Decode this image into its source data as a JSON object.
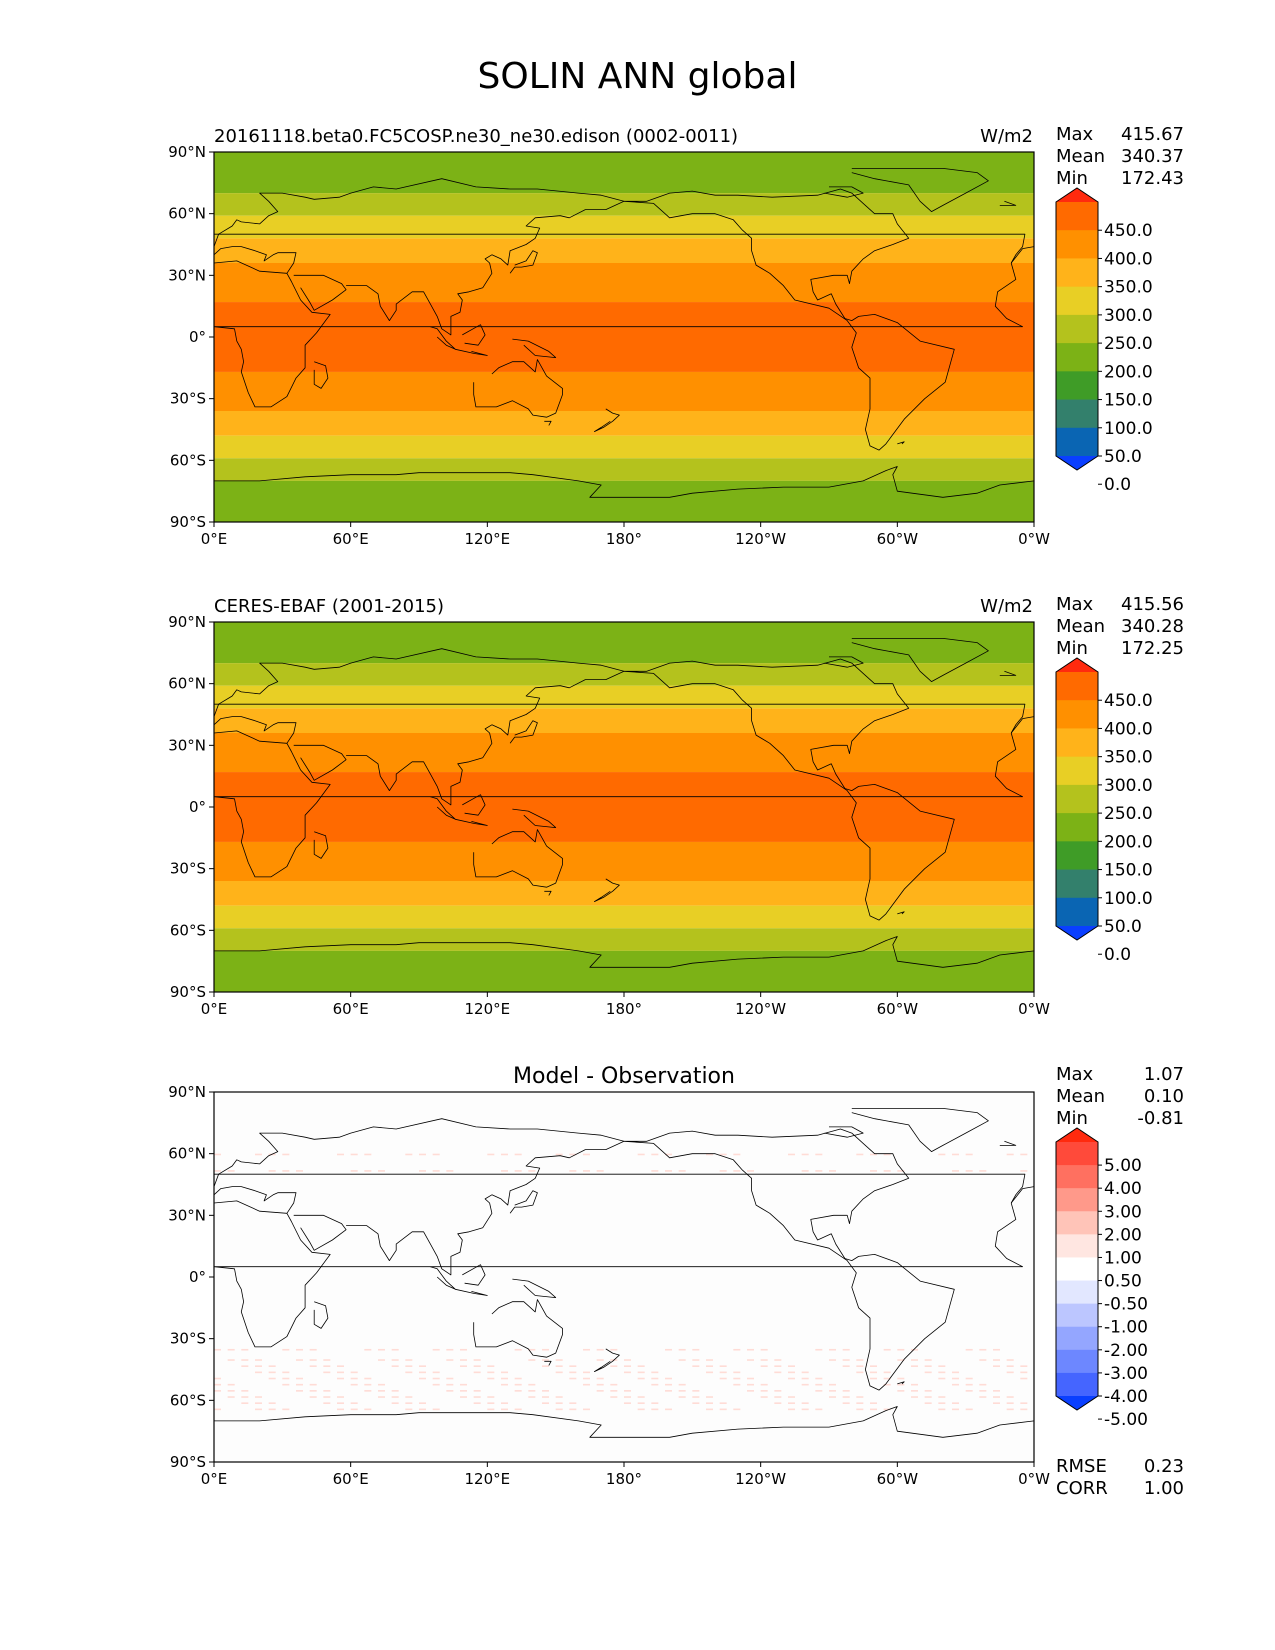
{
  "page": {
    "title": "SOLIN ANN global"
  },
  "axes": {
    "lat_ticks": [
      "90°N",
      "60°N",
      "30°N",
      "0°",
      "30°S",
      "60°S",
      "90°S"
    ],
    "lon_ticks": [
      "0°E",
      "60°E",
      "120°E",
      "180°",
      "120°W",
      "60°W",
      "0°W"
    ],
    "lat_range": [
      -90,
      90
    ],
    "lon_range": [
      0,
      360
    ]
  },
  "colorbars": {
    "abs": {
      "labels": [
        "450.0",
        "400.0",
        "350.0",
        "300.0",
        "250.0",
        "200.0",
        "150.0",
        "100.0",
        "50.0",
        "0.0"
      ],
      "colors": [
        "#ff2a0e",
        "#ff6a00",
        "#ff9000",
        "#ffb31a",
        "#e8cf25",
        "#b4c21d",
        "#7cb216",
        "#3f9c27",
        "#33806c",
        "#0a65b3",
        "#0a3fff"
      ]
    },
    "diff": {
      "labels": [
        "5.00",
        "4.00",
        "3.00",
        "2.00",
        "1.00",
        "0.50",
        "-0.50",
        "-1.00",
        "-2.00",
        "-3.00",
        "-4.00",
        "-5.00"
      ],
      "colors": [
        "#ff2a0e",
        "#ff4a3a",
        "#ff7060",
        "#ff998a",
        "#ffc4b8",
        "#ffe6e1",
        "#ffffff",
        "#e2e7ff",
        "#bcc6ff",
        "#94a6ff",
        "#6d87ff",
        "#4565ff",
        "#0a3fff"
      ]
    }
  },
  "panels": [
    {
      "title": "20161118.beta0.FC5COSP.ne30_ne30.edison (0002-0011)",
      "units": "W/m2",
      "stats": {
        "max_label": "Max",
        "max": "415.67",
        "mean_label": "Mean",
        "mean": "340.37",
        "min_label": "Min",
        "min": "172.43"
      }
    },
    {
      "title": "CERES-EBAF (2001-2015)",
      "units": "W/m2",
      "stats": {
        "max_label": "Max",
        "max": "415.56",
        "mean_label": "Mean",
        "mean": "340.28",
        "min_label": "Min",
        "min": "172.25"
      }
    },
    {
      "title": "Model - Observation",
      "stats": {
        "max_label": "Max",
        "max": "1.07",
        "mean_label": "Mean",
        "mean": "0.10",
        "min_label": "Min",
        "min": "-0.81"
      },
      "metrics": {
        "rmse_label": "RMSE",
        "rmse": "0.23",
        "corr_label": "CORR",
        "corr": "1.00"
      }
    }
  ],
  "field_bands": [
    {
      "lat": [
        70,
        90
      ],
      "color": "#7cb216"
    },
    {
      "lat": [
        59,
        70
      ],
      "color": "#b4c21d"
    },
    {
      "lat": [
        48,
        59
      ],
      "color": "#e8cf25"
    },
    {
      "lat": [
        36,
        48
      ],
      "color": "#ffb31a"
    },
    {
      "lat": [
        17,
        36
      ],
      "color": "#ff9000"
    },
    {
      "lat": [
        -17,
        17
      ],
      "color": "#ff6a00"
    },
    {
      "lat": [
        -36,
        -17
      ],
      "color": "#ff9000"
    },
    {
      "lat": [
        -48,
        -36
      ],
      "color": "#ffb31a"
    },
    {
      "lat": [
        -59,
        -48
      ],
      "color": "#e8cf25"
    },
    {
      "lat": [
        -70,
        -59
      ],
      "color": "#b4c21d"
    },
    {
      "lat": [
        -90,
        -70
      ],
      "color": "#7cb216"
    }
  ]
}
